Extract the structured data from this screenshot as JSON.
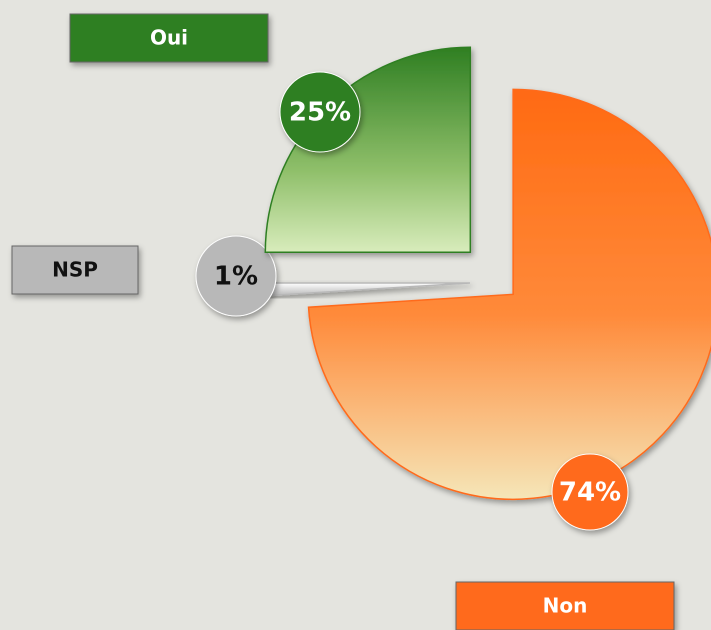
{
  "chart_data": {
    "type": "pie",
    "categories": [
      "Non",
      "NSP",
      "Oui"
    ],
    "values": [
      74,
      1,
      25
    ],
    "value_labels": [
      "74%",
      "1%",
      "25%"
    ],
    "colors": [
      "#ff6a1a",
      "#b8b8b8",
      "#2f7f22"
    ]
  }
}
